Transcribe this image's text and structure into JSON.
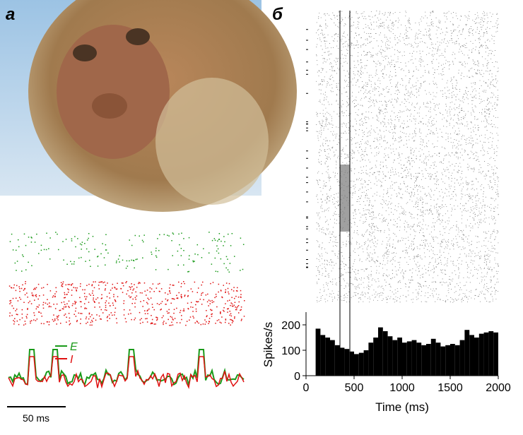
{
  "panel_a": {
    "label": "а",
    "legend": [
      "E",
      "I"
    ],
    "scale_bar": "50 ms"
  },
  "panel_b": {
    "label": "б"
  },
  "chart_data": {
    "type": "histogram",
    "ylabel": "Spikes/s",
    "xlabel": "Time (ms)",
    "bins": [
      100,
      150,
      200,
      250,
      300,
      350,
      400,
      450,
      500,
      550,
      600,
      650,
      700,
      750,
      800,
      850,
      900,
      950,
      1000,
      1050,
      1100,
      1150,
      1200,
      1250,
      1300,
      1350,
      1400,
      1450,
      1500,
      1550,
      1600,
      1650,
      1700,
      1750,
      1800,
      1850,
      1900,
      1950,
      2000
    ],
    "values": [
      185,
      160,
      150,
      140,
      120,
      110,
      105,
      95,
      85,
      90,
      100,
      130,
      150,
      190,
      175,
      155,
      140,
      150,
      130,
      135,
      140,
      130,
      120,
      125,
      145,
      130,
      115,
      120,
      125,
      120,
      140,
      180,
      160,
      150,
      165,
      170,
      175,
      170
    ],
    "color": "#000000",
    "xlim": [
      0,
      2000
    ],
    "xticks": [
      0,
      500,
      1000,
      1500,
      2000
    ],
    "ylim": [
      0,
      250
    ],
    "yticks": [
      0,
      100,
      200
    ]
  }
}
